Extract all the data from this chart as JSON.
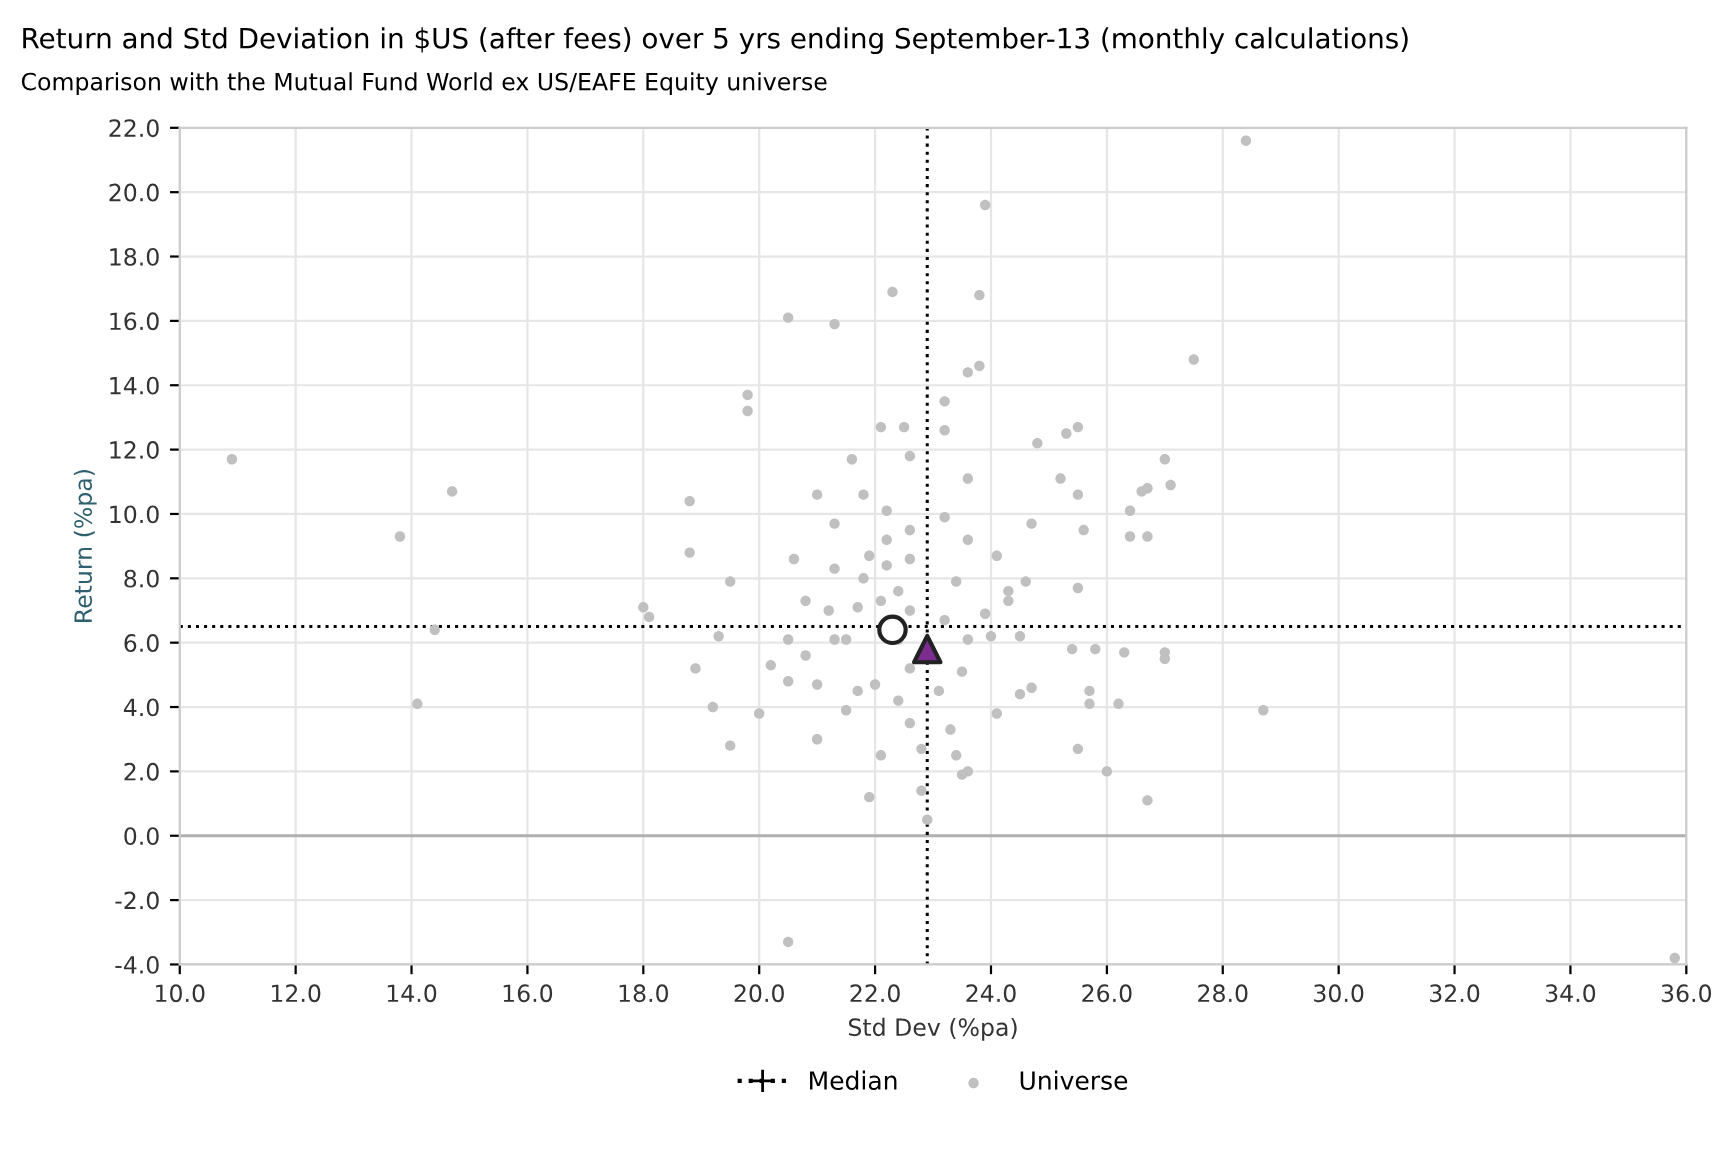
{
  "chart_data": {
    "type": "scatter",
    "title": "Return and Std Deviation in $US (after fees) over 5 yrs ending September-13 (monthly calculations)",
    "subtitle": "Comparison with the Mutual Fund World ex US/EAFE Equity universe",
    "xlabel": "Std Dev (%pa)",
    "ylabel": "Return (%pa)",
    "xlim": [
      10,
      36
    ],
    "ylim": [
      -4,
      22
    ],
    "xticks": [
      {
        "value": 10,
        "label": "10.0"
      },
      {
        "value": 12,
        "label": "12.0"
      },
      {
        "value": 14,
        "label": "14.0"
      },
      {
        "value": 16,
        "label": "16.0"
      },
      {
        "value": 18,
        "label": "18.0"
      },
      {
        "value": 20,
        "label": "20.0"
      },
      {
        "value": 22,
        "label": "22.0"
      },
      {
        "value": 24,
        "label": "24.0"
      },
      {
        "value": 26,
        "label": "26.0"
      },
      {
        "value": 28,
        "label": "28.0"
      },
      {
        "value": 30,
        "label": "30.0"
      },
      {
        "value": 32,
        "label": "32.0"
      },
      {
        "value": 34,
        "label": "34.0"
      },
      {
        "value": 36,
        "label": "36.0"
      }
    ],
    "yticks": [
      {
        "value": -4,
        "label": "-4.0"
      },
      {
        "value": -2,
        "label": "-2.0"
      },
      {
        "value": 0,
        "label": "0.0"
      },
      {
        "value": 2,
        "label": "2.0"
      },
      {
        "value": 4,
        "label": "4.0"
      },
      {
        "value": 6,
        "label": "6.0"
      },
      {
        "value": 8,
        "label": "8.0"
      },
      {
        "value": 10,
        "label": "10.0"
      },
      {
        "value": 12,
        "label": "12.0"
      },
      {
        "value": 14,
        "label": "14.0"
      },
      {
        "value": 16,
        "label": "16.0"
      },
      {
        "value": 18,
        "label": "18.0"
      },
      {
        "value": 20,
        "label": "20.0"
      },
      {
        "value": 22,
        "label": "22.0"
      }
    ],
    "grid": true,
    "legend": "bottom",
    "ref_lines": [
      {
        "axis": "y",
        "value": 0,
        "color": "#b0b0b0",
        "line_style": "solid"
      },
      {
        "axis": "x",
        "value": 22.9,
        "label": "Median",
        "color": "#000000",
        "line_style": "dotted"
      },
      {
        "axis": "y",
        "value": 6.5,
        "color": "#000000",
        "line_style": "dotted"
      }
    ],
    "series": [
      {
        "name": "Universe",
        "color": "#c0c0c0",
        "marker": "circle",
        "x": [
          10.9,
          13.8,
          14.7,
          14.1,
          14.4,
          28.4,
          23.9,
          23.8,
          20.5,
          21.3,
          22.3,
          19.8,
          19.8,
          27.5,
          20.5,
          35.8,
          28.7,
          26.7,
          18.0,
          18.1,
          18.8,
          18.8,
          18.9,
          19.2,
          19.5,
          19.5,
          19.3,
          20.2,
          20.0,
          21.0,
          21.3,
          21.8,
          21.6,
          22.1,
          22.5,
          22.6,
          21.8,
          21.5,
          20.8,
          21.0,
          21.7,
          22.1,
          21.9,
          22.6,
          20.8,
          20.6,
          23.2,
          23.2,
          23.6,
          23.8,
          23.6,
          23.2,
          23.6,
          24.1,
          24.8,
          25.3,
          25.5,
          25.2,
          25.5,
          24.7,
          25.6,
          26.4,
          26.6,
          26.7,
          27.0,
          27.1,
          26.7,
          26.4,
          24.3,
          25.5,
          25.8,
          25.4,
          26.3,
          27.0,
          27.0,
          26.2,
          25.7,
          25.7,
          26.0,
          25.5,
          24.5,
          24.7,
          24.1,
          23.6,
          23.5,
          23.4,
          23.3,
          23.1,
          23.5,
          24.0,
          24.5,
          23.9,
          24.3,
          24.6,
          23.4,
          23.2,
          23.6,
          22.9,
          22.8,
          22.2,
          22.2,
          21.9,
          21.3,
          21.2,
          21.3,
          20.5,
          20.5,
          21.0,
          21.5,
          22.0,
          22.4,
          22.6,
          22.4,
          22.1,
          21.7,
          22.2,
          22.6,
          22.6,
          22.4,
          22.6,
          22.8
        ],
        "values": [
          11.7,
          9.3,
          10.7,
          4.1,
          6.4,
          21.6,
          19.6,
          16.8,
          16.1,
          15.9,
          16.9,
          13.7,
          13.2,
          14.8,
          -3.3,
          -3.8,
          3.9,
          1.1,
          7.1,
          6.8,
          8.8,
          10.4,
          5.2,
          4.0,
          7.9,
          2.8,
          6.2,
          5.3,
          3.8,
          10.6,
          9.7,
          10.6,
          11.7,
          12.7,
          12.7,
          11.8,
          8.0,
          6.1,
          5.6,
          3.0,
          4.5,
          2.5,
          1.2,
          5.2,
          7.3,
          8.6,
          13.5,
          12.6,
          14.4,
          14.6,
          11.1,
          9.9,
          9.2,
          8.7,
          12.2,
          12.5,
          12.7,
          11.1,
          10.6,
          9.7,
          9.5,
          10.1,
          10.7,
          10.8,
          11.7,
          10.9,
          9.3,
          9.3,
          7.3,
          7.7,
          5.8,
          5.8,
          5.7,
          5.7,
          5.5,
          4.1,
          4.1,
          4.5,
          2.0,
          2.7,
          4.4,
          4.6,
          3.8,
          2.0,
          1.9,
          2.5,
          3.3,
          4.5,
          5.1,
          6.2,
          6.2,
          6.9,
          7.6,
          7.9,
          7.9,
          6.7,
          6.1,
          0.5,
          1.4,
          9.2,
          8.4,
          8.7,
          8.3,
          7.0,
          6.1,
          6.1,
          4.8,
          4.7,
          3.9,
          4.7,
          6.1,
          7.0,
          7.6,
          7.3,
          7.1,
          10.1,
          9.5,
          8.6,
          4.2,
          3.5,
          2.7
        ]
      },
      {
        "color": "#ffffff",
        "marker": "circle",
        "x": [
          22.3
        ],
        "values": [
          6.4
        ]
      },
      {
        "color": "#7b2d8e",
        "marker": "triangle",
        "x": [
          22.9
        ],
        "values": [
          5.8
        ]
      }
    ]
  }
}
